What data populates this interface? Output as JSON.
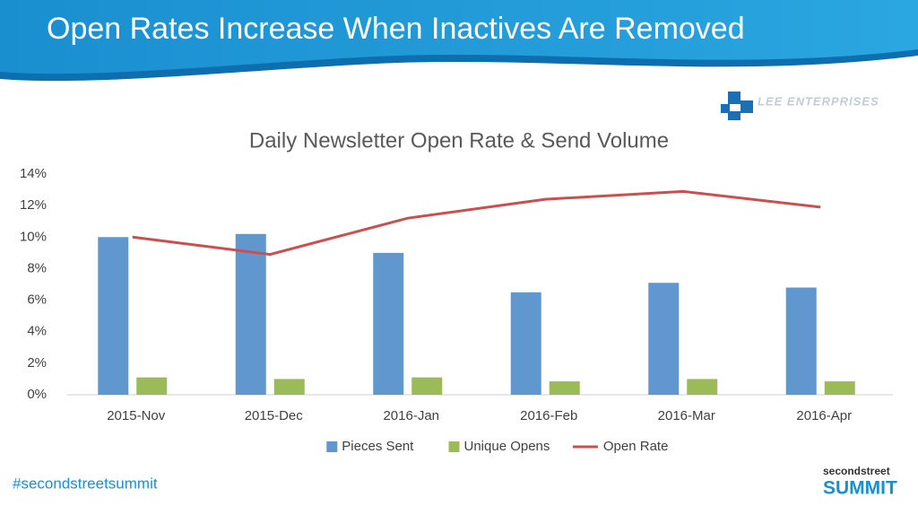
{
  "header": {
    "title": "Open Rates Increase When Inactives Are Removed"
  },
  "logos": {
    "lee": "LEE ENTERPRISES",
    "summit_top": "secondstreet",
    "summit_bottom": "SUMMIT"
  },
  "footer": {
    "hashtag": "#secondstreetsummit"
  },
  "chart_data": {
    "type": "bar",
    "title": "Daily Newsletter Open Rate & Send Volume",
    "categories": [
      "2015-Nov",
      "2015-Dec",
      "2016-Jan",
      "2016-Feb",
      "2016-Mar",
      "2016-Apr"
    ],
    "series": [
      {
        "name": "Pieces Sent",
        "type": "bar",
        "color": "#6197cf",
        "values": [
          10.0,
          10.2,
          9.0,
          6.5,
          7.1,
          6.8
        ]
      },
      {
        "name": "Unique Opens",
        "type": "bar",
        "color": "#9bbb59",
        "values": [
          1.1,
          1.0,
          1.1,
          0.85,
          1.0,
          0.85
        ]
      },
      {
        "name": "Open Rate",
        "type": "line",
        "color": "#c9504e",
        "values": [
          10.0,
          8.9,
          11.2,
          12.4,
          12.9,
          11.9
        ]
      }
    ],
    "ylim": [
      0,
      14
    ],
    "yticks": [
      {
        "value": 0,
        "label": "0%"
      },
      {
        "value": 2,
        "label": "2%"
      },
      {
        "value": 4,
        "label": "4%"
      },
      {
        "value": 6,
        "label": "6%"
      },
      {
        "value": 8,
        "label": "8%"
      },
      {
        "value": 10,
        "label": "10%"
      },
      {
        "value": 12,
        "label": "12%"
      },
      {
        "value": 14,
        "label": "14%"
      }
    ],
    "grid": false,
    "legend": "bottom"
  }
}
